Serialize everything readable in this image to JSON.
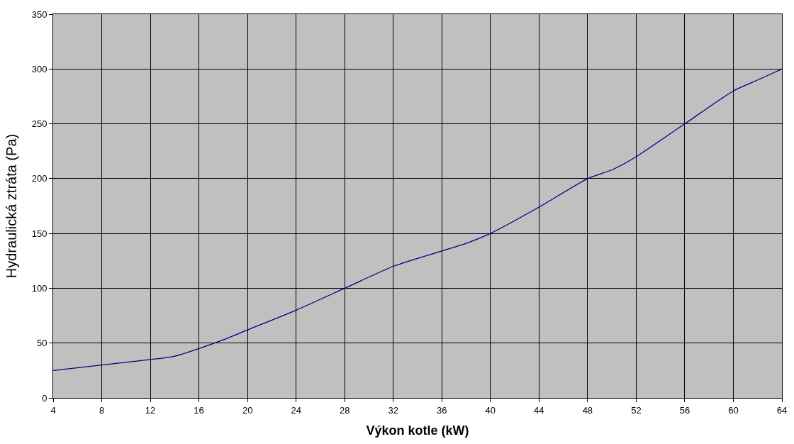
{
  "chart_data": {
    "type": "line",
    "xlabel": "Výkon kotle (kW)",
    "ylabel": "Hydraulická ztráta (Pa)",
    "x": [
      4,
      8,
      12,
      14,
      16,
      18,
      20,
      24,
      28,
      32,
      36,
      38,
      40,
      44,
      48,
      50,
      52,
      56,
      60,
      62,
      64
    ],
    "series": [
      {
        "color": "#000080",
        "values": [
          25,
          30,
          35,
          38,
          45,
          53,
          62,
          80,
          100,
          120,
          134,
          141,
          150,
          174,
          200,
          208,
          220,
          250,
          280,
          290,
          300
        ]
      }
    ],
    "xlim": [
      4,
      64
    ],
    "xticks": [
      4,
      8,
      12,
      16,
      20,
      24,
      28,
      32,
      36,
      40,
      44,
      48,
      52,
      56,
      60,
      64
    ],
    "ylim": [
      0,
      350
    ],
    "yticks": [
      0,
      50,
      100,
      150,
      200,
      250,
      300,
      350
    ],
    "grid": true,
    "legend": false,
    "marker": "none",
    "line_style": "solid"
  }
}
